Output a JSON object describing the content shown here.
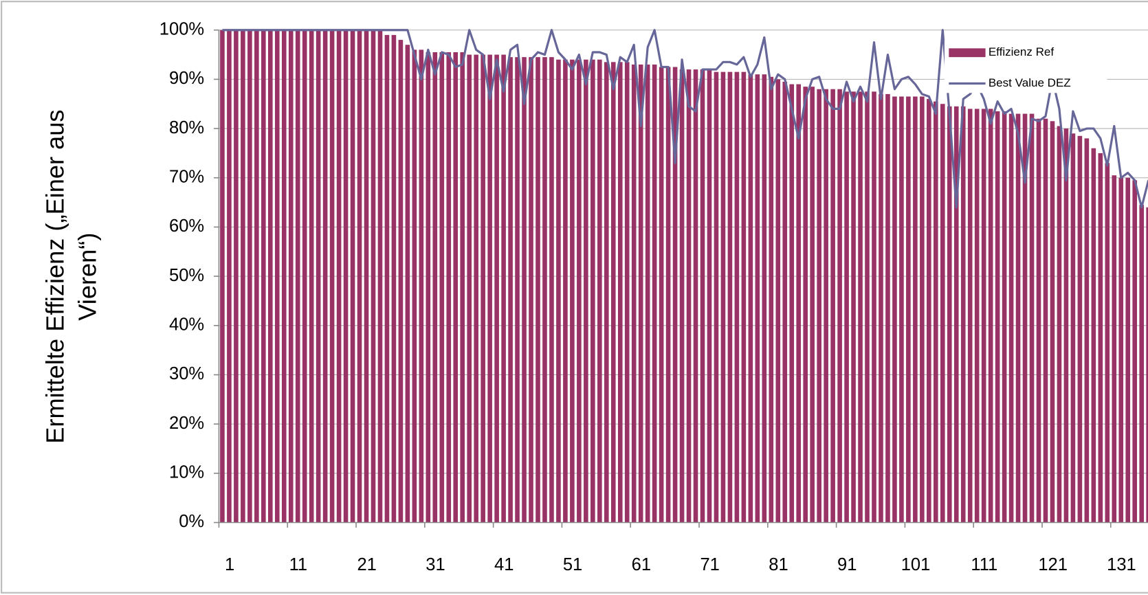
{
  "chart_data": {
    "type": "bar_line",
    "y_label": [
      "Ermittelte Effizienz („Einer aus",
      "Vieren“)"
    ],
    "categories": [
      "1",
      null,
      null,
      null,
      null,
      null,
      null,
      null,
      null,
      null,
      "11",
      null,
      null,
      null,
      null,
      null,
      null,
      null,
      null,
      null,
      "21",
      null,
      null,
      null,
      null,
      null,
      null,
      null,
      null,
      null,
      "31",
      null,
      null,
      null,
      null,
      null,
      null,
      null,
      null,
      null,
      "41",
      null,
      null,
      null,
      null,
      null,
      null,
      null,
      null,
      null,
      "51",
      null,
      null,
      null,
      null,
      null,
      null,
      null,
      null,
      null,
      "61",
      null,
      null,
      null,
      null,
      null,
      null,
      null,
      null,
      null,
      "71",
      null,
      null,
      null,
      null,
      null,
      null,
      null,
      null,
      null,
      "81",
      null,
      null,
      null,
      null,
      null,
      null,
      null,
      null,
      null,
      "91",
      null,
      null,
      null,
      null,
      null,
      null,
      null,
      null,
      null,
      "101",
      null,
      null,
      null,
      null,
      null,
      null,
      null,
      null,
      null,
      "111",
      null,
      null,
      null,
      null,
      null,
      null,
      null,
      null,
      null,
      "121",
      null,
      null,
      null,
      null,
      null,
      null,
      null,
      null,
      null,
      "131",
      null,
      null,
      null,
      null,
      null
    ],
    "series": [
      {
        "name": "Effizienz Ref",
        "kind": "bar",
        "color": "#993366",
        "values": [
          100,
          100,
          100,
          100,
          100,
          100,
          100,
          100,
          100,
          100,
          100,
          100,
          100,
          100,
          100,
          100,
          100,
          100,
          100,
          100,
          100,
          100,
          100,
          100,
          99,
          99,
          98,
          97,
          96,
          96,
          95.5,
          95.5,
          95.5,
          95.5,
          95.5,
          95.5,
          95,
          95,
          95,
          95,
          95,
          95,
          94.5,
          94.5,
          94.5,
          94.5,
          94.5,
          94.5,
          94.5,
          94,
          94,
          94,
          94,
          94,
          94,
          94,
          93.5,
          93.5,
          93.5,
          93.5,
          93,
          93,
          93,
          93,
          92.5,
          92.5,
          92.5,
          92,
          92,
          92,
          92,
          92,
          91.5,
          91.5,
          91.5,
          91.5,
          91.5,
          91,
          91,
          91,
          90.5,
          90,
          89.5,
          89,
          89,
          88.5,
          88.5,
          88,
          88,
          88,
          88,
          87.5,
          87.5,
          87.5,
          87.5,
          87.5,
          87,
          87,
          86.5,
          86.5,
          86.5,
          86.5,
          86.5,
          86,
          85.5,
          85,
          84.5,
          84.5,
          84.5,
          84,
          84,
          84,
          84,
          83.5,
          83.5,
          83,
          83,
          83,
          83,
          82,
          82,
          81.5,
          80.5,
          80,
          79,
          78.5,
          78,
          76,
          75,
          73,
          70.5,
          70,
          70,
          69.5,
          64.5,
          64
        ]
      },
      {
        "name": "Best Value DEZ",
        "kind": "line",
        "color": "#666699",
        "values": [
          100,
          100,
          100,
          100,
          100,
          100,
          100,
          100,
          100,
          100,
          100,
          100,
          100,
          100,
          100,
          100,
          100,
          100,
          100,
          100,
          100,
          100,
          100,
          100,
          100,
          100,
          100,
          100,
          95,
          90,
          96,
          91,
          95.5,
          95,
          92.5,
          93,
          100,
          96,
          95,
          86,
          94,
          87.5,
          96,
          97,
          85,
          94,
          95.5,
          95,
          100,
          95.5,
          94,
          92,
          95,
          89,
          95.5,
          95.5,
          95,
          88,
          94.5,
          93.5,
          97,
          80.5,
          96.5,
          100,
          92.5,
          92.5,
          73,
          94,
          84.5,
          83.5,
          92,
          92,
          92,
          93.5,
          93.5,
          93,
          94.5,
          90.5,
          93,
          98.5,
          88,
          91,
          90,
          84,
          78,
          86,
          90,
          90.5,
          86,
          84,
          84,
          89.5,
          85.5,
          88.5,
          85.5,
          97.5,
          86,
          95,
          88,
          90,
          90.5,
          89,
          87,
          86.5,
          83,
          100,
          83,
          64,
          86,
          87,
          89,
          86,
          81,
          85.5,
          83,
          84,
          79,
          69,
          82,
          81.5,
          82.5,
          90,
          84,
          69.5,
          83.5,
          79.5,
          80,
          80,
          78,
          72.5,
          80.5,
          70,
          71,
          69.5,
          64,
          69.5
        ]
      }
    ],
    "ylim": [
      0,
      100
    ],
    "yticks": [
      {
        "value": 0,
        "label": "0%"
      },
      {
        "value": 10,
        "label": "10%"
      },
      {
        "value": 20,
        "label": "20%"
      },
      {
        "value": 30,
        "label": "30%"
      },
      {
        "value": 40,
        "label": "40%"
      },
      {
        "value": 50,
        "label": "50%"
      },
      {
        "value": 60,
        "label": "60%"
      },
      {
        "value": 70,
        "label": "70%"
      },
      {
        "value": 80,
        "label": "80%"
      },
      {
        "value": 90,
        "label": "90%"
      },
      {
        "value": 100,
        "label": "100%"
      }
    ],
    "grid": true,
    "legend": "top-right"
  }
}
